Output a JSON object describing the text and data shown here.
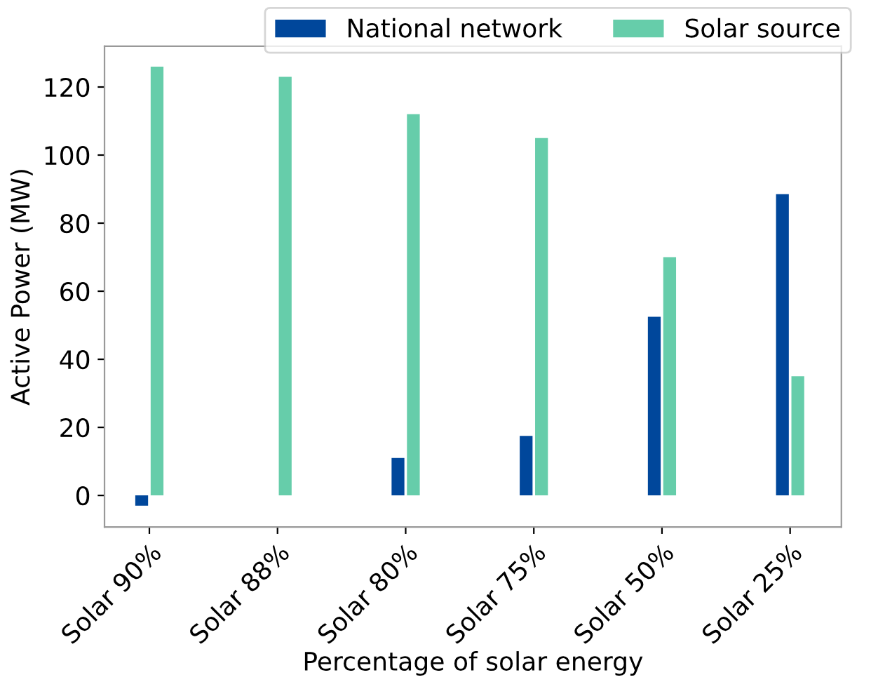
{
  "chart_data": {
    "type": "bar",
    "xlabel": "Percentage of solar energy",
    "ylabel": "Active Power (MW)",
    "categories": [
      "Solar 90%",
      "Solar 88%",
      "Solar 80%",
      "Solar 75%",
      "Solar 50%",
      "Solar 25%"
    ],
    "series": [
      {
        "name": "National network",
        "color": "#00479b",
        "values": [
          -3,
          0,
          11,
          17.5,
          52.5,
          88.5
        ]
      },
      {
        "name": "Solar source",
        "color": "#66cdaa",
        "values": [
          126,
          123,
          112,
          105,
          70,
          35
        ]
      }
    ],
    "ylim": [
      -9.3,
      132
    ],
    "yticks": [
      0,
      20,
      40,
      60,
      80,
      100,
      120
    ],
    "grid": false,
    "legend": "top right"
  }
}
